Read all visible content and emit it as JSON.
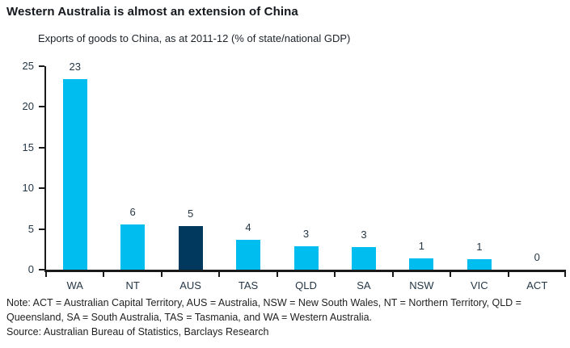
{
  "header": {
    "title": "Western Australia is almost an extension of China",
    "subtitle": "Exports of goods to China, as at 2011-12 (% of state/national GDP)"
  },
  "chart_data": {
    "type": "bar",
    "title": "Exports of goods to China, as at 2011-12 (% of state/national GDP)",
    "categories": [
      "WA",
      "NT",
      "AUS",
      "TAS",
      "QLD",
      "SA",
      "NSW",
      "VIC",
      "ACT"
    ],
    "values": [
      23.4,
      5.6,
      5.4,
      3.7,
      2.9,
      2.8,
      1.4,
      1.3,
      0
    ],
    "bar_labels": [
      "23",
      "6",
      "5",
      "4",
      "3",
      "3",
      "1",
      "1",
      "0"
    ],
    "ylim": [
      0,
      25
    ],
    "yticks": [
      0,
      5,
      10,
      15,
      20,
      25
    ],
    "grid": false,
    "legend": "none",
    "highlight_category": "AUS"
  },
  "colors": {
    "bar": "#00BDF0",
    "highlight_bar": "#00395D",
    "axis": "#1A1A1A",
    "chart_label": "#253746"
  },
  "footer": {
    "note": "Note: ACT = Australian Capital Territory, AUS = Australia, NSW = New South Wales, NT = Northern Territory, QLD = Queensland, SA = South Australia, TAS = Tasmania, and WA = Western Australia.",
    "source": "Source: Australian Bureau of Statistics, Barclays Research"
  }
}
